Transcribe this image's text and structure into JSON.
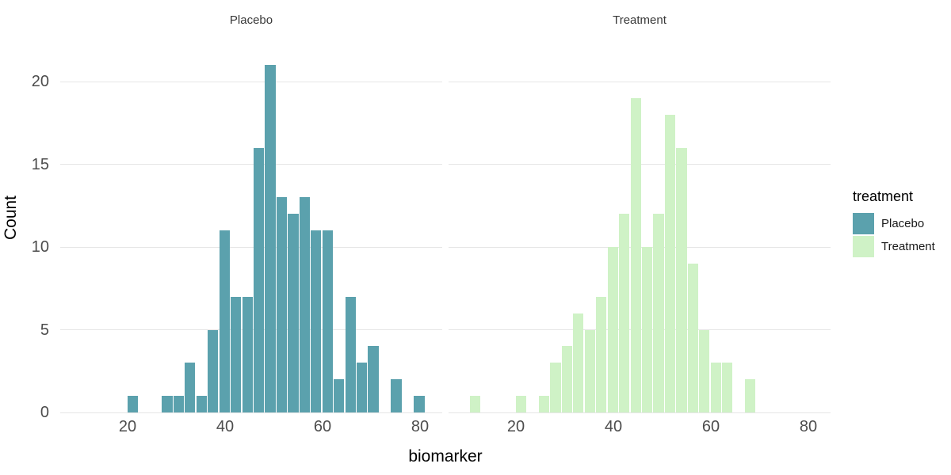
{
  "chart_data": {
    "type": "histogram",
    "title": "",
    "facet_variable": "treatment",
    "facets": [
      "Placebo",
      "Treatment"
    ],
    "xlabel": "biomarker",
    "ylabel": "Count",
    "x_ticks": [
      20,
      40,
      60,
      80
    ],
    "y_ticks": [
      0,
      5,
      10,
      15,
      20
    ],
    "ylim": [
      0,
      22
    ],
    "xlim_shown": [
      6.2,
      84.6
    ],
    "grid": "horizontal major gridlines only, no axis lines, no ticks",
    "legend_position": "right",
    "bins": {
      "start": 10.5,
      "width": 2.35,
      "count": 30
    },
    "series": [
      {
        "name": "Placebo",
        "color": "#5BA1AD",
        "counts": [
          0,
          0,
          0,
          0,
          1,
          0,
          0,
          1,
          1,
          3,
          1,
          5,
          11,
          7,
          7,
          16,
          21,
          13,
          12,
          13,
          11,
          11,
          2,
          7,
          3,
          4,
          0,
          2,
          0,
          1
        ]
      },
      {
        "name": "Treatment",
        "color": "#CFF2C6",
        "counts": [
          1,
          0,
          0,
          0,
          1,
          0,
          1,
          3,
          4,
          6,
          5,
          7,
          10,
          12,
          19,
          10,
          12,
          18,
          16,
          9,
          5,
          3,
          3,
          0,
          2,
          0,
          0,
          0,
          0,
          0
        ]
      }
    ],
    "legend": {
      "title": "treatment",
      "items": [
        {
          "label": "Placebo",
          "color": "#5BA1AD"
        },
        {
          "label": "Treatment",
          "color": "#CFF2C6"
        }
      ]
    }
  },
  "colors": {
    "background": "#FFFFFF",
    "gridline": "#E6E6E6",
    "axis_text": "#4D4D4D",
    "strip_text": "#383838",
    "title_text": "#000000",
    "legend_label_text": "#1A1A1A"
  }
}
